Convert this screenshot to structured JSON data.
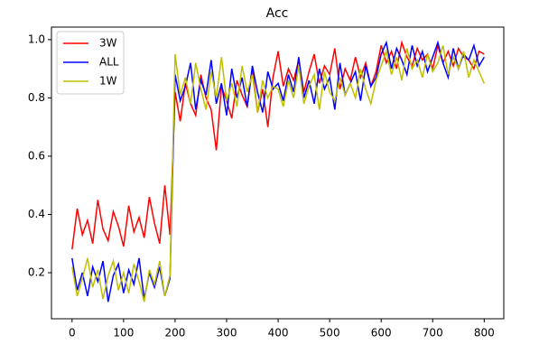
{
  "chart_data": {
    "type": "line",
    "title": "Acc",
    "x": [
      0,
      10,
      20,
      30,
      40,
      50,
      60,
      70,
      80,
      90,
      100,
      110,
      120,
      130,
      140,
      150,
      160,
      170,
      180,
      190,
      200,
      210,
      220,
      230,
      240,
      250,
      260,
      270,
      280,
      290,
      300,
      310,
      320,
      330,
      340,
      350,
      360,
      370,
      380,
      390,
      400,
      410,
      420,
      430,
      440,
      450,
      460,
      470,
      480,
      490,
      500,
      510,
      520,
      530,
      540,
      550,
      560,
      570,
      580,
      590,
      600,
      610,
      620,
      630,
      640,
      650,
      660,
      670,
      680,
      690,
      700,
      710,
      720,
      730,
      740,
      750,
      760,
      770,
      780,
      790,
      800
    ],
    "series": [
      {
        "name": "3W",
        "color": "#ff0000",
        "values": [
          0.28,
          0.42,
          0.33,
          0.38,
          0.3,
          0.45,
          0.35,
          0.31,
          0.41,
          0.36,
          0.29,
          0.43,
          0.34,
          0.39,
          0.32,
          0.46,
          0.37,
          0.3,
          0.5,
          0.33,
          0.82,
          0.72,
          0.85,
          0.78,
          0.74,
          0.88,
          0.8,
          0.76,
          0.62,
          0.84,
          0.79,
          0.73,
          0.86,
          0.81,
          0.77,
          0.9,
          0.75,
          0.83,
          0.7,
          0.87,
          0.96,
          0.84,
          0.9,
          0.86,
          0.93,
          0.82,
          0.89,
          0.95,
          0.85,
          0.91,
          0.88,
          0.97,
          0.83,
          0.9,
          0.86,
          0.94,
          0.87,
          0.92,
          0.84,
          0.89,
          0.98,
          0.92,
          0.96,
          0.9,
          0.99,
          0.94,
          0.91,
          0.97,
          0.93,
          0.95,
          0.9,
          0.98,
          0.92,
          0.96,
          0.91,
          0.97,
          0.94,
          0.93,
          0.9,
          0.96,
          0.95
        ]
      },
      {
        "name": "ALL",
        "color": "#0000ff",
        "values": [
          0.25,
          0.14,
          0.2,
          0.12,
          0.22,
          0.17,
          0.24,
          0.1,
          0.19,
          0.23,
          0.13,
          0.21,
          0.16,
          0.25,
          0.11,
          0.2,
          0.15,
          0.22,
          0.12,
          0.18,
          0.88,
          0.79,
          0.84,
          0.92,
          0.76,
          0.86,
          0.81,
          0.93,
          0.78,
          0.85,
          0.74,
          0.9,
          0.8,
          0.87,
          0.77,
          0.91,
          0.82,
          0.75,
          0.89,
          0.83,
          0.85,
          0.79,
          0.88,
          0.82,
          0.94,
          0.8,
          0.86,
          0.78,
          0.9,
          0.83,
          0.87,
          0.76,
          0.92,
          0.81,
          0.85,
          0.89,
          0.79,
          0.91,
          0.84,
          0.87,
          0.95,
          0.99,
          0.9,
          0.97,
          0.93,
          0.88,
          0.98,
          0.91,
          0.96,
          0.89,
          0.94,
          0.99,
          0.92,
          0.87,
          0.97,
          0.9,
          0.95,
          0.93,
          0.98,
          0.91,
          0.94
        ]
      },
      {
        "name": "1W",
        "color": "#bfbf00",
        "values": [
          0.22,
          0.12,
          0.18,
          0.25,
          0.15,
          0.21,
          0.11,
          0.19,
          0.24,
          0.14,
          0.2,
          0.13,
          0.23,
          0.17,
          0.1,
          0.21,
          0.16,
          0.24,
          0.12,
          0.19,
          0.95,
          0.81,
          0.87,
          0.78,
          0.92,
          0.83,
          0.76,
          0.89,
          0.8,
          0.94,
          0.79,
          0.85,
          0.77,
          0.91,
          0.82,
          0.88,
          0.75,
          0.86,
          0.8,
          0.84,
          0.83,
          0.77,
          0.86,
          0.8,
          0.91,
          0.78,
          0.84,
          0.88,
          0.76,
          0.89,
          0.82,
          0.79,
          0.87,
          0.81,
          0.85,
          0.8,
          0.9,
          0.83,
          0.78,
          0.86,
          0.91,
          0.96,
          0.88,
          0.94,
          0.86,
          0.97,
          0.9,
          0.93,
          0.87,
          0.95,
          0.89,
          0.92,
          0.98,
          0.88,
          0.94,
          0.9,
          0.96,
          0.87,
          0.93,
          0.89,
          0.85
        ]
      }
    ],
    "xlim": [
      -40,
      838
    ],
    "ylim": [
      0.042,
      1.043
    ],
    "xticks": [
      0,
      100,
      200,
      300,
      400,
      500,
      600,
      700,
      800
    ],
    "yticks": [
      0.2,
      0.4,
      0.6,
      0.8,
      {
        "value": 1,
        "label": "1.0"
      }
    ],
    "legend": "upper left"
  }
}
